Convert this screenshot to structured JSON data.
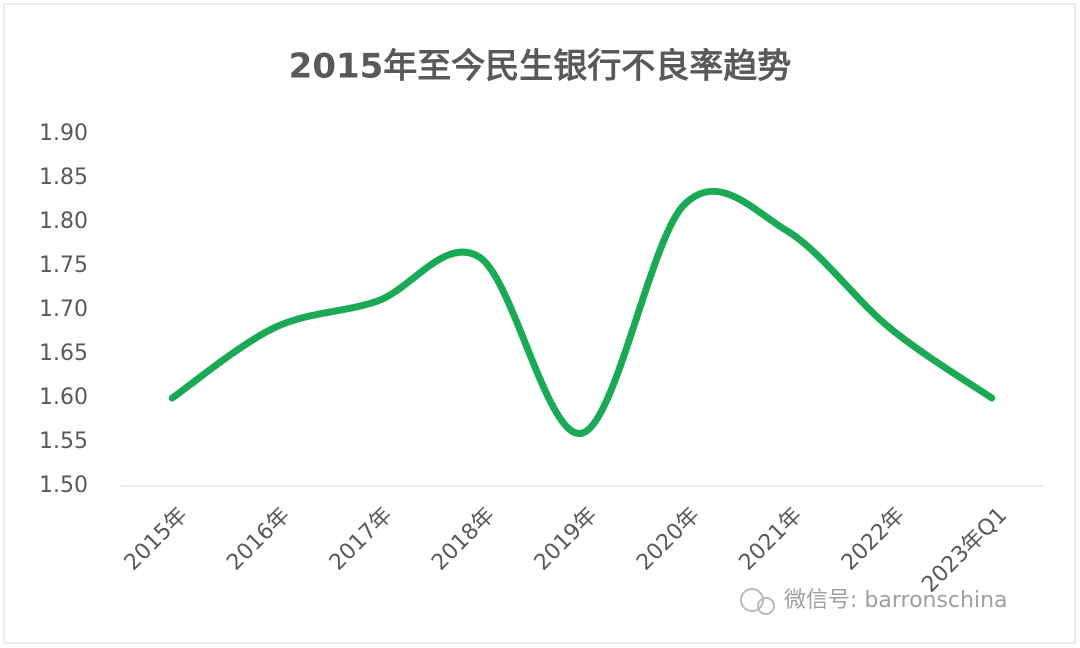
{
  "chart_data": {
    "type": "line",
    "title": "2015年至今民生银行不良率趋势",
    "categories": [
      "2015年",
      "2016年",
      "2017年",
      "2018年",
      "2019年",
      "2020年",
      "2021年",
      "2022年",
      "2023年Q1"
    ],
    "values": [
      1.6,
      1.68,
      1.71,
      1.76,
      1.56,
      1.82,
      1.79,
      1.68,
      1.6
    ],
    "color": "#1aaa55",
    "smooth": true,
    "ylim": [
      1.5,
      1.9
    ],
    "yticks": [
      {
        "value": 1.5,
        "label": "1.50"
      },
      {
        "value": 1.55,
        "label": "1.55"
      },
      {
        "value": 1.6,
        "label": "1.60"
      },
      {
        "value": 1.65,
        "label": "1.65"
      },
      {
        "value": 1.7,
        "label": "1.70"
      },
      {
        "value": 1.75,
        "label": "1.75"
      },
      {
        "value": 1.8,
        "label": "1.80"
      },
      {
        "value": 1.85,
        "label": "1.85"
      },
      {
        "value": 1.9,
        "label": "1.90"
      }
    ],
    "watermark": "微信号: barronschina"
  }
}
